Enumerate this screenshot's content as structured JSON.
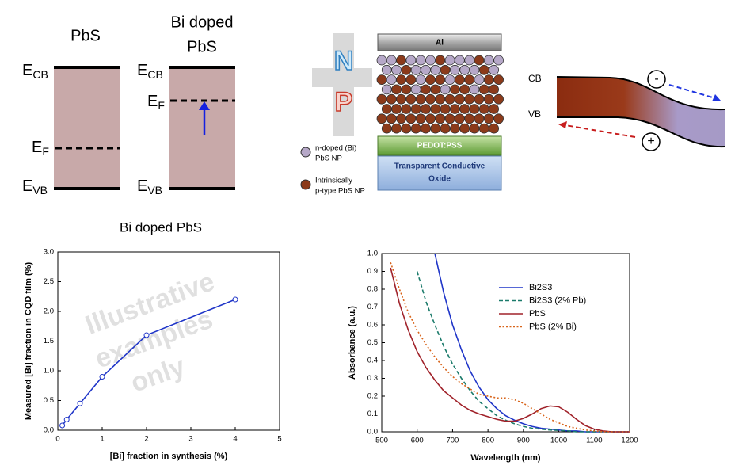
{
  "band_diagram": {
    "panels": [
      {
        "title": [
          "PbS"
        ],
        "levels": [
          {
            "symbol": "E",
            "sub": "CB"
          },
          {
            "symbol": "E",
            "sub": "F"
          },
          {
            "symbol": "E",
            "sub": "VB"
          }
        ]
      },
      {
        "title": [
          "Bi doped",
          "PbS"
        ],
        "levels": [
          {
            "symbol": "E",
            "sub": "CB"
          },
          {
            "symbol": "E",
            "sub": "F"
          },
          {
            "symbol": "E",
            "sub": "VB"
          }
        ]
      }
    ]
  },
  "device": {
    "top_electrode": "Al",
    "hole_layer": "PEDOT:PSS",
    "substrate": [
      "Transparent Conductive",
      "Oxide"
    ],
    "n_label": "N",
    "p_label": "P",
    "legend": [
      [
        "n-doped (Bi)",
        "PbS NP"
      ],
      [
        "Intrinsically",
        "p-type PbS NP"
      ]
    ]
  },
  "band_bending": {
    "cb": "CB",
    "vb": "VB",
    "electron": "-",
    "hole": "+"
  },
  "chart_data": [
    {
      "type": "line",
      "title": "Bi doped PbS",
      "x_label": "[Bi] fraction in synthesis (%)",
      "y_label": "Measured [Bi] fraction in CQD film (%)",
      "annotation": [
        "Illustrative",
        "examples",
        "only"
      ],
      "x": [
        0.1,
        0.2,
        0.5,
        1,
        2,
        4
      ],
      "values": [
        0.08,
        0.18,
        0.45,
        0.9,
        1.6,
        2.2
      ],
      "color": "#1f35c8",
      "markers": true,
      "xlim": [
        0,
        5
      ],
      "ylim": [
        0,
        3
      ],
      "xticks": [
        0,
        1,
        2,
        3,
        4,
        5
      ],
      "yticks": [
        {
          "value": 0,
          "label": "0.0"
        },
        0.5,
        {
          "value": 1,
          "label": "1.0"
        },
        1.5,
        {
          "value": 2,
          "label": "2.0"
        },
        2.5,
        {
          "value": 3,
          "label": "3.0"
        }
      ]
    },
    {
      "type": "line",
      "x_label": "Wavelength (nm)",
      "y_label": "Absorbance (a.u.)",
      "legend": "upper right",
      "x": [
        500,
        525,
        550,
        575,
        600,
        625,
        650,
        675,
        700,
        725,
        750,
        775,
        800,
        825,
        850,
        875,
        900,
        925,
        950,
        975,
        1000,
        1025,
        1050,
        1075,
        1100,
        1125,
        1150,
        1175,
        1200
      ],
      "series": [
        {
          "name": "Bi2S3",
          "color": "#1f35c8",
          "style": "solid",
          "values": [
            null,
            null,
            null,
            null,
            null,
            null,
            1.0,
            0.78,
            0.6,
            0.46,
            0.34,
            0.25,
            0.18,
            0.13,
            0.09,
            0.065,
            0.045,
            0.03,
            0.02,
            0.015,
            0.01,
            0.005,
            0.005,
            0,
            0,
            0,
            0,
            0,
            0
          ]
        },
        {
          "name": "Bi2S3 (2% Pb)",
          "color": "#1a7a6a",
          "style": "dashed",
          "values": [
            null,
            null,
            null,
            null,
            0.9,
            0.73,
            0.6,
            0.48,
            0.38,
            0.3,
            0.23,
            0.17,
            0.13,
            0.09,
            0.065,
            0.045,
            0.03,
            0.02,
            0.015,
            0.01,
            0.008,
            0.005,
            0,
            0,
            0,
            0,
            0,
            0,
            0
          ]
        },
        {
          "name": "PbS",
          "color": "#a0222a",
          "style": "solid",
          "values": [
            null,
            0.92,
            0.72,
            0.57,
            0.45,
            0.36,
            0.29,
            0.23,
            0.19,
            0.15,
            0.12,
            0.1,
            0.085,
            0.07,
            0.06,
            0.06,
            0.075,
            0.1,
            0.13,
            0.145,
            0.14,
            0.11,
            0.07,
            0.035,
            0.015,
            0.005,
            0,
            0,
            0
          ]
        },
        {
          "name": "PbS (2% Bi)",
          "color": "#d8641a",
          "style": "dotted",
          "values": [
            null,
            0.95,
            0.8,
            0.67,
            0.57,
            0.49,
            0.42,
            0.36,
            0.31,
            0.27,
            0.24,
            0.21,
            0.2,
            0.19,
            0.19,
            0.18,
            0.16,
            0.13,
            0.1,
            0.07,
            0.05,
            0.03,
            0.02,
            0.01,
            0.005,
            0,
            0,
            0,
            0
          ]
        }
      ],
      "xlim": [
        500,
        1200
      ],
      "ylim": [
        0,
        1
      ],
      "xticks": [
        500,
        600,
        700,
        800,
        900,
        1000,
        1100,
        1200
      ],
      "yticks": [
        {
          "value": 0,
          "label": "0.0"
        },
        0.1,
        0.2,
        0.3,
        0.4,
        0.5,
        0.6,
        0.7,
        0.8,
        0.9,
        {
          "value": 1,
          "label": "1.0"
        }
      ]
    }
  ]
}
